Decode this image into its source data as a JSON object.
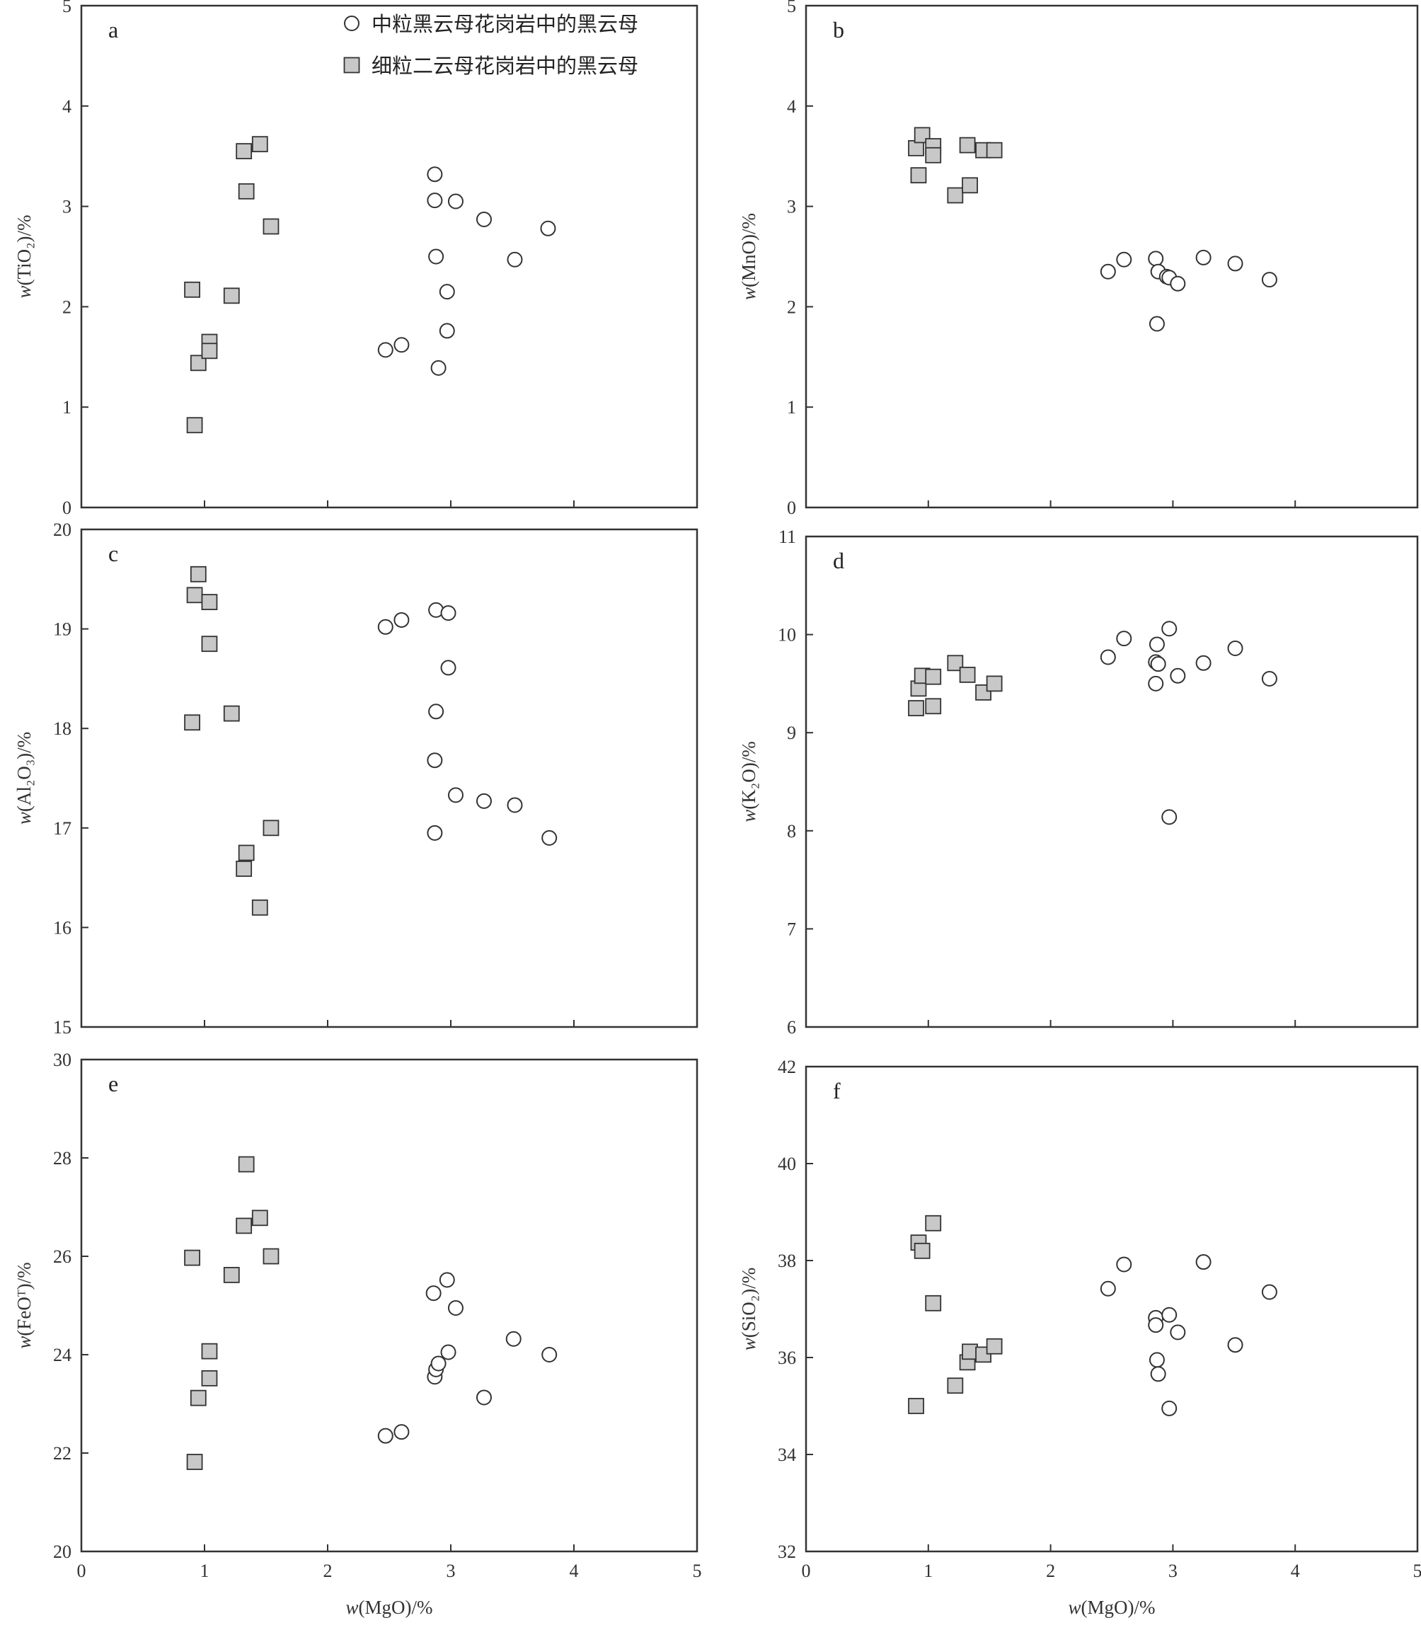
{
  "legend": [
    {
      "marker": "circle",
      "label": "中粒黑云母花岗岩中的黑云母"
    },
    {
      "marker": "square",
      "label": "细粒二云母花岗岩中的黑云母"
    }
  ],
  "colors": {
    "square_fill": "#c8c8c8",
    "stroke": "#333333"
  },
  "chart_data": [
    {
      "type": "scatter",
      "panel": "a",
      "xlabel_italic": "w",
      "xlabel_rest": "(MgO)/%",
      "ylabel_italic": "w",
      "ylabel_rest": "(TiO₂)/%",
      "xlim": [
        0,
        5
      ],
      "ylim": [
        0,
        5
      ],
      "yticks": [
        0,
        1,
        2,
        3,
        4,
        5
      ],
      "xticks": [
        0,
        1,
        2,
        3,
        4,
        5
      ],
      "show_xtick_labels": false,
      "show_xlabel": false,
      "series": [
        {
          "marker": "circle",
          "points": [
            [
              2.47,
              1.57
            ],
            [
              2.6,
              1.62
            ],
            [
              2.87,
              3.32
            ],
            [
              2.87,
              3.06
            ],
            [
              2.88,
              2.5
            ],
            [
              2.9,
              1.39
            ],
            [
              2.97,
              2.15
            ],
            [
              2.97,
              1.76
            ],
            [
              3.04,
              3.05
            ],
            [
              3.27,
              2.87
            ],
            [
              3.52,
              2.47
            ],
            [
              3.79,
              2.78
            ]
          ]
        },
        {
          "marker": "square",
          "points": [
            [
              0.9,
              2.17
            ],
            [
              0.92,
              0.82
            ],
            [
              0.95,
              1.44
            ],
            [
              1.04,
              1.65
            ],
            [
              1.04,
              1.56
            ],
            [
              1.22,
              2.11
            ],
            [
              1.32,
              3.55
            ],
            [
              1.34,
              3.15
            ],
            [
              1.45,
              3.62
            ],
            [
              1.54,
              2.8
            ]
          ]
        }
      ]
    },
    {
      "type": "scatter",
      "panel": "b",
      "xlabel_italic": "w",
      "xlabel_rest": "(MgO)/%",
      "ylabel_italic": "w",
      "ylabel_rest": "(MnO)/%",
      "xlim": [
        0,
        5
      ],
      "ylim": [
        0,
        5
      ],
      "yticks": [
        0,
        1,
        2,
        3,
        4,
        5
      ],
      "xticks": [
        0,
        1,
        2,
        3,
        4,
        5
      ],
      "show_xtick_labels": false,
      "show_xlabel": false,
      "series": [
        {
          "marker": "circle",
          "points": [
            [
              2.47,
              2.35
            ],
            [
              2.6,
              2.47
            ],
            [
              2.86,
              2.48
            ],
            [
              2.87,
              1.83
            ],
            [
              2.88,
              2.35
            ],
            [
              2.95,
              2.3
            ],
            [
              2.97,
              2.29
            ],
            [
              3.04,
              2.23
            ],
            [
              3.25,
              2.49
            ],
            [
              3.51,
              2.43
            ],
            [
              3.79,
              2.27
            ]
          ]
        },
        {
          "marker": "square",
          "points": [
            [
              0.9,
              3.58
            ],
            [
              0.92,
              3.31
            ],
            [
              0.95,
              3.71
            ],
            [
              1.04,
              3.6
            ],
            [
              1.04,
              3.51
            ],
            [
              1.22,
              3.11
            ],
            [
              1.32,
              3.61
            ],
            [
              1.34,
              3.21
            ],
            [
              1.45,
              3.56
            ],
            [
              1.54,
              3.56
            ]
          ]
        }
      ]
    },
    {
      "type": "scatter",
      "panel": "c",
      "xlabel_italic": "w",
      "xlabel_rest": "(MgO)/%",
      "ylabel_italic": "w",
      "ylabel_rest": "(Al₂O₃)/%",
      "xlim": [
        0,
        5
      ],
      "ylim": [
        15,
        20
      ],
      "yticks": [
        15,
        16,
        17,
        18,
        19,
        20
      ],
      "xticks": [
        0,
        1,
        2,
        3,
        4,
        5
      ],
      "show_xtick_labels": false,
      "show_xlabel": false,
      "series": [
        {
          "marker": "circle",
          "points": [
            [
              2.47,
              19.02
            ],
            [
              2.6,
              19.09
            ],
            [
              2.88,
              19.19
            ],
            [
              2.98,
              19.16
            ],
            [
              2.98,
              18.61
            ],
            [
              2.88,
              18.17
            ],
            [
              2.87,
              17.68
            ],
            [
              3.04,
              17.33
            ],
            [
              3.27,
              17.27
            ],
            [
              3.52,
              17.23
            ],
            [
              2.87,
              16.95
            ],
            [
              3.8,
              16.9
            ]
          ]
        },
        {
          "marker": "square",
          "points": [
            [
              0.95,
              19.55
            ],
            [
              0.92,
              19.34
            ],
            [
              1.04,
              19.27
            ],
            [
              1.04,
              18.85
            ],
            [
              0.9,
              18.06
            ],
            [
              1.22,
              18.15
            ],
            [
              1.34,
              16.75
            ],
            [
              1.32,
              16.59
            ],
            [
              1.54,
              17.0
            ],
            [
              1.45,
              16.2
            ]
          ]
        }
      ]
    },
    {
      "type": "scatter",
      "panel": "d",
      "xlabel_italic": "w",
      "xlabel_rest": "(MgO)/%",
      "ylabel_italic": "w",
      "ylabel_rest": "(K₂O)/%",
      "xlim": [
        0,
        5
      ],
      "ylim": [
        6,
        11
      ],
      "yticks": [
        6,
        7,
        8,
        9,
        10,
        11
      ],
      "xticks": [
        0,
        1,
        2,
        3,
        4,
        5
      ],
      "show_xtick_labels": false,
      "show_xlabel": false,
      "series": [
        {
          "marker": "circle",
          "points": [
            [
              2.47,
              9.77
            ],
            [
              2.6,
              9.96
            ],
            [
              2.87,
              9.9
            ],
            [
              2.86,
              9.72
            ],
            [
              2.88,
              9.7
            ],
            [
              2.86,
              9.5
            ],
            [
              2.97,
              10.06
            ],
            [
              2.97,
              8.14
            ],
            [
              3.04,
              9.58
            ],
            [
              3.25,
              9.71
            ],
            [
              3.51,
              9.86
            ],
            [
              3.79,
              9.55
            ]
          ]
        },
        {
          "marker": "square",
          "points": [
            [
              0.9,
              9.25
            ],
            [
              0.92,
              9.45
            ],
            [
              0.95,
              9.58
            ],
            [
              1.04,
              9.57
            ],
            [
              1.04,
              9.27
            ],
            [
              1.22,
              9.71
            ],
            [
              1.32,
              9.59
            ],
            [
              1.45,
              9.41
            ],
            [
              1.54,
              9.5
            ]
          ]
        }
      ]
    },
    {
      "type": "scatter",
      "panel": "e",
      "xlabel_italic": "w",
      "xlabel_rest": "(MgO)/%",
      "ylabel_italic": "w",
      "ylabel_rest": "(FeOᵀ)/%",
      "xlim": [
        0,
        5
      ],
      "ylim": [
        20,
        30
      ],
      "yticks": [
        20,
        22,
        24,
        26,
        28,
        30
      ],
      "xticks": [
        0,
        1,
        2,
        3,
        4,
        5
      ],
      "show_xtick_labels": true,
      "show_xlabel": true,
      "series": [
        {
          "marker": "circle",
          "points": [
            [
              2.47,
              22.35
            ],
            [
              2.6,
              22.43
            ],
            [
              2.86,
              25.25
            ],
            [
              2.87,
              23.55
            ],
            [
              2.88,
              23.7
            ],
            [
              2.9,
              23.82
            ],
            [
              2.97,
              25.52
            ],
            [
              2.98,
              24.05
            ],
            [
              3.04,
              24.95
            ],
            [
              3.27,
              23.13
            ],
            [
              3.51,
              24.32
            ],
            [
              3.8,
              24.0
            ]
          ]
        },
        {
          "marker": "square",
          "points": [
            [
              0.9,
              25.97
            ],
            [
              0.92,
              21.82
            ],
            [
              0.95,
              23.12
            ],
            [
              1.04,
              24.07
            ],
            [
              1.04,
              23.52
            ],
            [
              1.22,
              25.62
            ],
            [
              1.32,
              26.62
            ],
            [
              1.34,
              27.87
            ],
            [
              1.45,
              26.78
            ],
            [
              1.54,
              26.0
            ]
          ]
        }
      ]
    },
    {
      "type": "scatter",
      "panel": "f",
      "xlabel_italic": "w",
      "xlabel_rest": "(MgO)/%",
      "ylabel_italic": "w",
      "ylabel_rest": "(SiO₂)/%",
      "xlim": [
        0,
        5
      ],
      "ylim": [
        32,
        42
      ],
      "yticks": [
        32,
        34,
        36,
        38,
        40,
        42
      ],
      "xticks": [
        0,
        1,
        2,
        3,
        4,
        5
      ],
      "show_xtick_labels": true,
      "show_xlabel": true,
      "series": [
        {
          "marker": "circle",
          "points": [
            [
              2.47,
              37.42
            ],
            [
              2.6,
              37.92
            ],
            [
              2.86,
              36.82
            ],
            [
              2.86,
              36.67
            ],
            [
              2.87,
              35.95
            ],
            [
              2.88,
              35.66
            ],
            [
              2.97,
              36.88
            ],
            [
              2.97,
              34.95
            ],
            [
              3.04,
              36.52
            ],
            [
              3.25,
              37.97
            ],
            [
              3.51,
              36.26
            ],
            [
              3.79,
              37.35
            ]
          ]
        },
        {
          "marker": "square",
          "points": [
            [
              0.9,
              35.0
            ],
            [
              0.92,
              38.37
            ],
            [
              0.95,
              38.2
            ],
            [
              1.04,
              38.77
            ],
            [
              1.04,
              37.12
            ],
            [
              1.22,
              35.42
            ],
            [
              1.32,
              35.9
            ],
            [
              1.34,
              36.12
            ],
            [
              1.45,
              36.06
            ],
            [
              1.54,
              36.23
            ]
          ]
        }
      ]
    }
  ]
}
